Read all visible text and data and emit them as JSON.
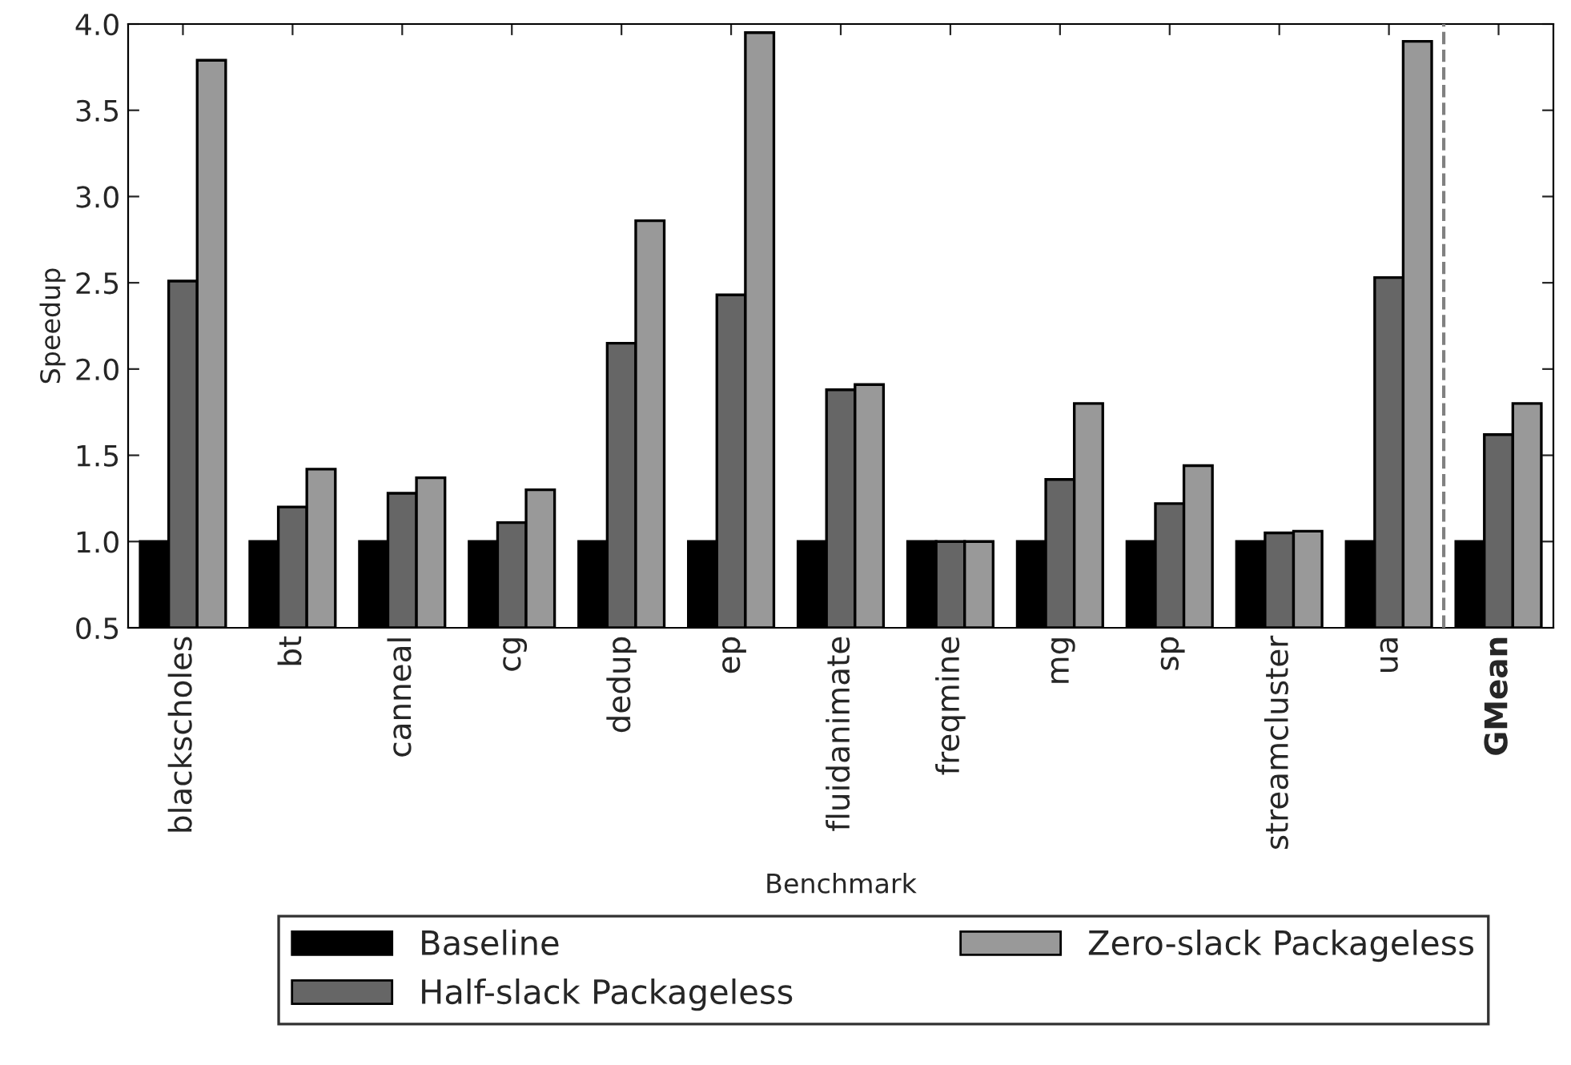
{
  "chart_data": {
    "type": "bar",
    "xlabel": "Benchmark",
    "ylabel": "Speedup",
    "categories": [
      "blackscholes",
      "bt",
      "canneal",
      "cg",
      "dedup",
      "ep",
      "fluidanimate",
      "freqmine",
      "mg",
      "sp",
      "streamcluster",
      "ua",
      "GMean"
    ],
    "series": [
      {
        "name": "Baseline",
        "color": "#000000",
        "values": [
          1.0,
          1.0,
          1.0,
          1.0,
          1.0,
          1.0,
          1.0,
          1.0,
          1.0,
          1.0,
          1.0,
          1.0,
          1.0
        ]
      },
      {
        "name": "Half-slack Packageless",
        "color": "#666666",
        "values": [
          2.51,
          1.2,
          1.28,
          1.11,
          2.15,
          2.43,
          1.88,
          1.0,
          1.36,
          1.22,
          1.05,
          2.53,
          1.62
        ]
      },
      {
        "name": "Zero-slack Packageless",
        "color": "#999999",
        "values": [
          3.79,
          1.42,
          1.37,
          1.3,
          2.86,
          3.95,
          1.91,
          1.0,
          1.8,
          1.44,
          1.06,
          3.9,
          1.8
        ]
      }
    ],
    "ylim": [
      0.5,
      4.0
    ],
    "yticks": [
      0.5,
      {
        "value": 1,
        "label": "1.0"
      },
      1.5,
      {
        "value": 2,
        "label": "2.0"
      },
      2.5,
      {
        "value": 3,
        "label": "3.0"
      },
      3.5,
      {
        "value": 4,
        "label": "4.0"
      }
    ],
    "legend": "bottom",
    "grid": false
  }
}
